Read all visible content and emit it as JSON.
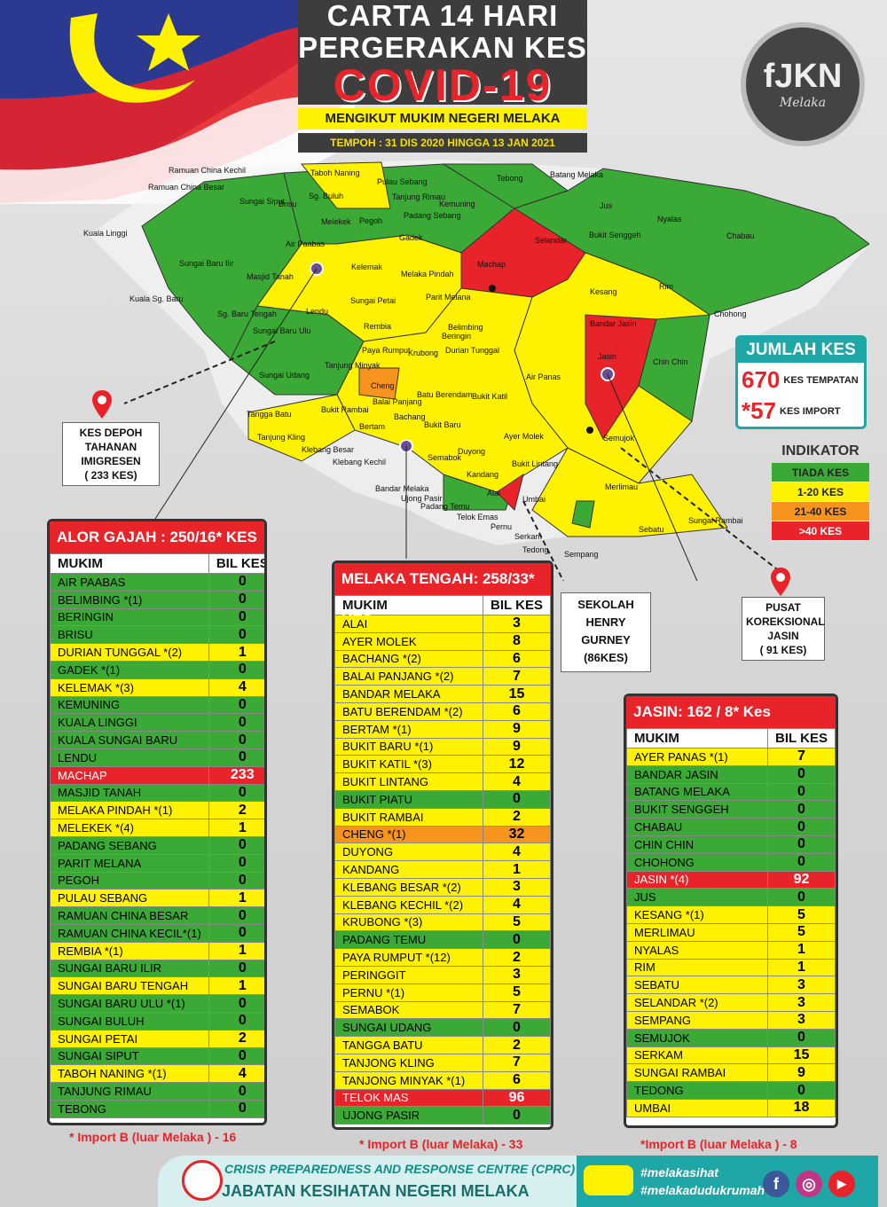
{
  "title": {
    "line1": "CARTA 14 HARI",
    "line2": "PERGERAKAN KES",
    "line3": "COVID-19",
    "subtitle": "MENGIKUT MUKIM NEGERI MELAKA",
    "period": "TEMPOH : 31 DIS 2020 HINGGA 13 JAN 2021"
  },
  "logo": {
    "text": "fJKN",
    "sub": "Melaka"
  },
  "map_labels": [
    "Ramuan China Kechil",
    "Ramuan China Besar",
    "Kuala Linggi",
    "Sungai Siput",
    "Brisu",
    "Sg. Buluh",
    "Taboh Naning",
    "Pulau Sebang",
    "Tanjung Rimau",
    "Padang Sebang",
    "Kemuning",
    "Tebong",
    "Batang Melaka",
    "Jus",
    "Nyalas",
    "Chabau",
    "Melekek",
    "Pegoh",
    "Gadek",
    "Air Paabas",
    "Selandar",
    "Bukit Senggeh",
    "Sungai Baru Ilir",
    "Masjid Tanah",
    "Kelemak",
    "Melaka Pindah",
    "Machap",
    "Parit Melana",
    "Kesang",
    "Rim",
    "Chohong",
    "Kuala Sg. Baru",
    "Lendu",
    "Sungai Petai",
    "Sg. Baru Tengah",
    "Sungai Baru Ulu",
    "Rembia",
    "Belimbing",
    "Beringin",
    "Durian Tunggal",
    "Bandar Jasin",
    "Jasin",
    "Chin Chin",
    "Sungai Udang",
    "Paya Rumput",
    "Tanjung Minyak",
    "Krubong",
    "Cheng",
    "Batu Berendam",
    "Bukit Katil",
    "Air Panas",
    "Tangga Batu",
    "Bukit Rambai",
    "Balai Panjang",
    "Bachang",
    "Tanjung Kling",
    "Bertam",
    "Bukit Baru",
    "Ayer Molek",
    "Semujok",
    "Klebang Besar",
    "Klebang Kechil",
    "Duyong",
    "Semabok",
    "Bukit Lintang",
    "Kandang",
    "Merlimau",
    "Bandar Melaka",
    "Ujong Pasir",
    "Padang Temu",
    "Alai",
    "Umbai",
    "Telok Emas",
    "Pernu",
    "Sungai Rambai",
    "Sebatu",
    "Serkam",
    "Tedong",
    "Sempang"
  ],
  "callouts": {
    "depoh": [
      "KES DEPOH",
      "TAHANAN",
      "IMIGRESEN",
      "( 233 KES)"
    ],
    "sekolah": [
      "SEKOLAH",
      "HENRY",
      "GURNEY",
      "(86KES)"
    ],
    "pusat": [
      "PUSAT",
      "KOREKSIONAL",
      "JASIN",
      "( 91 KES)"
    ]
  },
  "jumlah": {
    "head": "JUMLAH KES",
    "tempatan_num": "670",
    "tempatan_lbl": "KES TEMPATAN",
    "import_num": "*57",
    "import_lbl": "KES IMPORT"
  },
  "indikator": {
    "head": "INDIKATOR",
    "rows": [
      {
        "label": "TIADA KES",
        "color": "#3aa935"
      },
      {
        "label": "1-20 KES",
        "color": "#fff200"
      },
      {
        "label": "21-40 KES",
        "color": "#f7941d"
      },
      {
        "label": ">40 KES",
        "color": "#e8242a"
      }
    ]
  },
  "colors": {
    "green": "#3aa935",
    "yellow": "#fff200",
    "orange": "#f7941d",
    "red": "#e8242a"
  },
  "panels": [
    {
      "head": "ALOR GAJAH : 250/16* KES",
      "col1": "MUKIM",
      "col2": "BIL KES",
      "footnote": "* Import B (luar Melaka ) - 16",
      "rows": [
        [
          "AIR PAABAS",
          "0",
          "green"
        ],
        [
          "BELIMBING *(1)",
          "0",
          "green"
        ],
        [
          "BERINGIN",
          "0",
          "green"
        ],
        [
          "BRISU",
          "0",
          "green"
        ],
        [
          "DURIAN TUNGGAL *(2)",
          "1",
          "yellow"
        ],
        [
          "GADEK *(1)",
          "0",
          "green"
        ],
        [
          "KELEMAK *(3)",
          "4",
          "yellow"
        ],
        [
          "KEMUNING",
          "0",
          "green"
        ],
        [
          "KUALA LINGGI",
          "0",
          "green"
        ],
        [
          "KUALA SUNGAI BARU",
          "0",
          "green"
        ],
        [
          "LENDU",
          "0",
          "green"
        ],
        [
          "MACHAP",
          "233",
          "red"
        ],
        [
          "MASJID TANAH",
          "0",
          "green"
        ],
        [
          "MELAKA PINDAH *(1)",
          "2",
          "yellow"
        ],
        [
          "MELEKEK *(4)",
          "1",
          "yellow"
        ],
        [
          "PADANG SEBANG",
          "0",
          "green"
        ],
        [
          "PARIT MELANA",
          "0",
          "green"
        ],
        [
          "PEGOH",
          "0",
          "green"
        ],
        [
          "PULAU SEBANG",
          "1",
          "yellow"
        ],
        [
          "RAMUAN CHINA BESAR",
          "0",
          "green"
        ],
        [
          "RAMUAN CHINA KECIL*(1)",
          "0",
          "green"
        ],
        [
          "REMBIA *(1)",
          "1",
          "yellow"
        ],
        [
          "SUNGAI BARU ILIR",
          "0",
          "green"
        ],
        [
          "SUNGAI BARU TENGAH",
          "1",
          "yellow"
        ],
        [
          "SUNGAI BARU ULU *(1)",
          "0",
          "green"
        ],
        [
          "SUNGAI BULUH",
          "0",
          "green"
        ],
        [
          "SUNGAI PETAI",
          "2",
          "yellow"
        ],
        [
          "SUNGAI SIPUT",
          "0",
          "green"
        ],
        [
          "TABOH NANING *(1)",
          "4",
          "yellow"
        ],
        [
          "TANJUNG RIMAU",
          "0",
          "green"
        ],
        [
          "TEBONG",
          "0",
          "green"
        ]
      ]
    },
    {
      "head": "MELAKA TENGAH: 258/33* KES",
      "col1": "MUKIM",
      "col2": "BIL KES",
      "footnote": "* Import B (luar Melaka) - 33",
      "rows": [
        [
          "ALAI",
          "3",
          "yellow"
        ],
        [
          "AYER MOLEK",
          "8",
          "yellow"
        ],
        [
          "BACHANG *(2)",
          "6",
          "yellow"
        ],
        [
          "BALAI PANJANG *(2)",
          "7",
          "yellow"
        ],
        [
          "BANDAR MELAKA",
          "15",
          "yellow"
        ],
        [
          "BATU BERENDAM *(2)",
          "6",
          "yellow"
        ],
        [
          "BERTAM *(1)",
          "9",
          "yellow"
        ],
        [
          "BUKIT BARU *(1)",
          "9",
          "yellow"
        ],
        [
          "BUKIT KATIL *(3)",
          "12",
          "yellow"
        ],
        [
          "BUKIT LINTANG",
          "4",
          "yellow"
        ],
        [
          "BUKIT PIATU",
          "0",
          "green"
        ],
        [
          "BUKIT RAMBAI",
          "2",
          "yellow"
        ],
        [
          "CHENG *(1)",
          "32",
          "orange"
        ],
        [
          "DUYONG",
          "4",
          "yellow"
        ],
        [
          "KANDANG",
          "1",
          "yellow"
        ],
        [
          "KLEBANG BESAR *(2)",
          "3",
          "yellow"
        ],
        [
          "KLEBANG KECHIL *(2)",
          "4",
          "yellow"
        ],
        [
          "KRUBONG *(3)",
          "5",
          "yellow"
        ],
        [
          "PADANG TEMU",
          "0",
          "green"
        ],
        [
          "PAYA RUMPUT *(12)",
          "2",
          "yellow"
        ],
        [
          "PERINGGIT",
          "3",
          "yellow"
        ],
        [
          "PERNU *(1)",
          "5",
          "yellow"
        ],
        [
          "SEMABOK",
          "7",
          "yellow"
        ],
        [
          "SUNGAI UDANG",
          "0",
          "green"
        ],
        [
          "TANGGA BATU",
          "2",
          "yellow"
        ],
        [
          "TANJONG KLING",
          "7",
          "yellow"
        ],
        [
          "TANJONG MINYAK *(1)",
          "6",
          "yellow"
        ],
        [
          "TELOK MAS",
          "96",
          "red"
        ],
        [
          "UJONG PASIR",
          "0",
          "green"
        ]
      ]
    },
    {
      "head": "JASIN:  162 / 8* Kes",
      "col1": "MUKIM",
      "col2": "BIL KES",
      "footnote": "*Import B (luar Melaka ) - 8",
      "rows": [
        [
          "AYER PANAS *(1)",
          "7",
          "yellow"
        ],
        [
          "BANDAR JASIN",
          "0",
          "green"
        ],
        [
          "BATANG MELAKA",
          "0",
          "green"
        ],
        [
          "BUKIT SENGGEH",
          "0",
          "green"
        ],
        [
          "CHABAU",
          "0",
          "green"
        ],
        [
          "CHIN CHIN",
          "0",
          "green"
        ],
        [
          "CHOHONG",
          "0",
          "green"
        ],
        [
          "JASIN *(4)",
          "92",
          "red"
        ],
        [
          "JUS",
          "0",
          "green"
        ],
        [
          "KESANG *(1)",
          "5",
          "yellow"
        ],
        [
          "MERLIMAU",
          "5",
          "yellow"
        ],
        [
          "NYALAS",
          "1",
          "yellow"
        ],
        [
          "RIM",
          "1",
          "yellow"
        ],
        [
          "SEBATU",
          "3",
          "yellow"
        ],
        [
          "SELANDAR *(2)",
          "3",
          "yellow"
        ],
        [
          "SEMPANG",
          "3",
          "yellow"
        ],
        [
          "SEMUJOK",
          "0",
          "green"
        ],
        [
          "SERKAM",
          "15",
          "yellow"
        ],
        [
          "SUNGAI RAMBAI",
          "9",
          "yellow"
        ],
        [
          "TEDONG",
          "0",
          "green"
        ],
        [
          "UMBAI",
          "18",
          "yellow"
        ]
      ]
    }
  ],
  "footer": {
    "cprc": "CRISIS PREPAREDNESS AND RESPONSE CENTRE (CPRC)",
    "jkn": "JABATAN KESIHATAN NEGERI MELAKA",
    "tag1": "#melakasihat",
    "tag2": "#melakadudukrumah"
  }
}
